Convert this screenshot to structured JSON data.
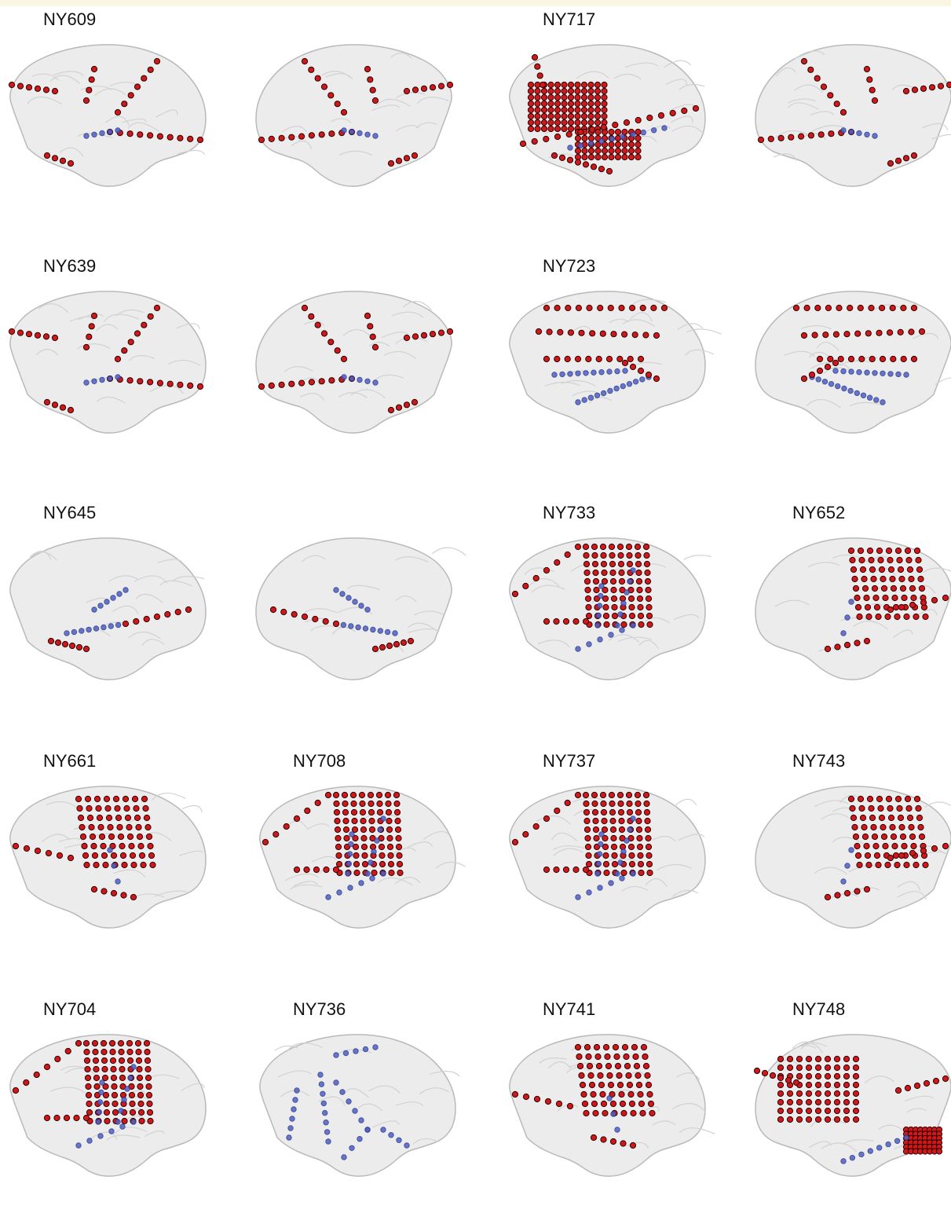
{
  "figure": {
    "panels": [
      {
        "id": "p0",
        "label": "NY609",
        "layout": "strips-sparse",
        "view": "left"
      },
      {
        "id": "p1",
        "label": "",
        "layout": "strips-sparse",
        "view": "right"
      },
      {
        "id": "p2",
        "label": "NY717",
        "layout": "dense-grid",
        "view": "left"
      },
      {
        "id": "p3",
        "label": "",
        "layout": "strips-sparse",
        "view": "right"
      },
      {
        "id": "p4",
        "label": "NY639",
        "layout": "strips-sparse",
        "view": "left"
      },
      {
        "id": "p5",
        "label": "",
        "layout": "strips-sparse",
        "view": "right"
      },
      {
        "id": "p6",
        "label": "NY723",
        "layout": "strips-depth",
        "view": "left"
      },
      {
        "id": "p7",
        "label": "",
        "layout": "strips-depth",
        "view": "right"
      },
      {
        "id": "p8",
        "label": "NY645",
        "layout": "depth-few",
        "view": "left"
      },
      {
        "id": "p9",
        "label": "",
        "layout": "depth-few",
        "view": "right"
      },
      {
        "id": "p10",
        "label": "NY733",
        "layout": "grid-depth",
        "view": "left"
      },
      {
        "id": "p11",
        "label": "NY652",
        "layout": "grid",
        "view": "right"
      },
      {
        "id": "p12",
        "label": "NY661",
        "layout": "grid",
        "view": "left"
      },
      {
        "id": "p13",
        "label": "NY708",
        "layout": "grid-depth",
        "view": "left"
      },
      {
        "id": "p14",
        "label": "NY737",
        "layout": "grid-depth",
        "view": "left"
      },
      {
        "id": "p15",
        "label": "NY743",
        "layout": "grid",
        "view": "right"
      },
      {
        "id": "p16",
        "label": "NY704",
        "layout": "grid-depth",
        "view": "left"
      },
      {
        "id": "p17",
        "label": "NY736",
        "layout": "depth-only",
        "view": "left"
      },
      {
        "id": "p18",
        "label": "NY741",
        "layout": "grid",
        "view": "left"
      },
      {
        "id": "p19",
        "label": "NY748",
        "layout": "grid-dense-patch",
        "view": "right"
      }
    ],
    "colors": {
      "surface_electrode": "#d0181a",
      "surface_outline": "#2a0000",
      "depth_electrode": "#5060c8",
      "brain_fill": "#ececec",
      "brain_stroke": "#b9b9b9",
      "label": "#111111",
      "topbar": "#fbf6e4"
    }
  }
}
